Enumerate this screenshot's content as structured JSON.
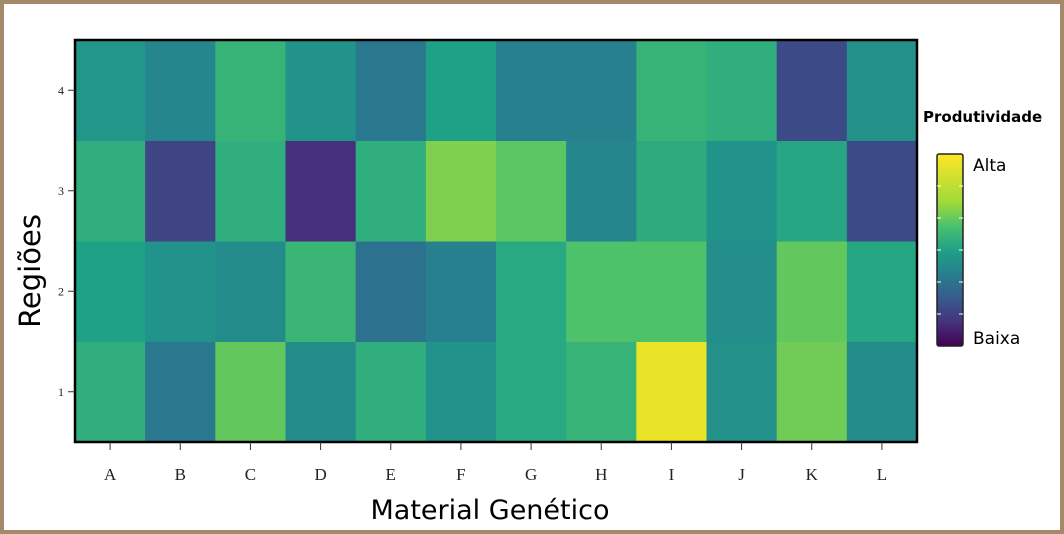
{
  "chart_data": {
    "type": "heatmap",
    "title": "",
    "xlabel": "Material Genético",
    "ylabel": "Regiões",
    "x_categories": [
      "A",
      "B",
      "C",
      "D",
      "E",
      "F",
      "G",
      "H",
      "I",
      "J",
      "K",
      "L"
    ],
    "y_categories": [
      "1",
      "2",
      "3",
      "4"
    ],
    "values": [
      [
        0.55,
        0.35,
        0.66,
        0.42,
        0.55,
        0.45,
        0.53,
        0.57,
        0.95,
        0.44,
        0.68,
        0.42
      ],
      [
        0.5,
        0.45,
        0.42,
        0.58,
        0.33,
        0.38,
        0.53,
        0.63,
        0.63,
        0.43,
        0.66,
        0.52
      ],
      [
        0.55,
        0.18,
        0.55,
        0.12,
        0.55,
        0.7,
        0.65,
        0.4,
        0.54,
        0.45,
        0.52,
        0.2
      ],
      [
        0.46,
        0.4,
        0.57,
        0.45,
        0.35,
        0.5,
        0.38,
        0.38,
        0.57,
        0.55,
        0.2,
        0.44
      ]
    ],
    "value_scale": [
      0,
      1
    ],
    "colormap": "viridis",
    "grid": false,
    "legend": {
      "title": "Produtividade",
      "high_label": "Alta",
      "low_label": "Baixa",
      "placement": "right"
    }
  },
  "colors": {
    "frame_border": "#a48a6a",
    "plot_border": "#000000"
  }
}
